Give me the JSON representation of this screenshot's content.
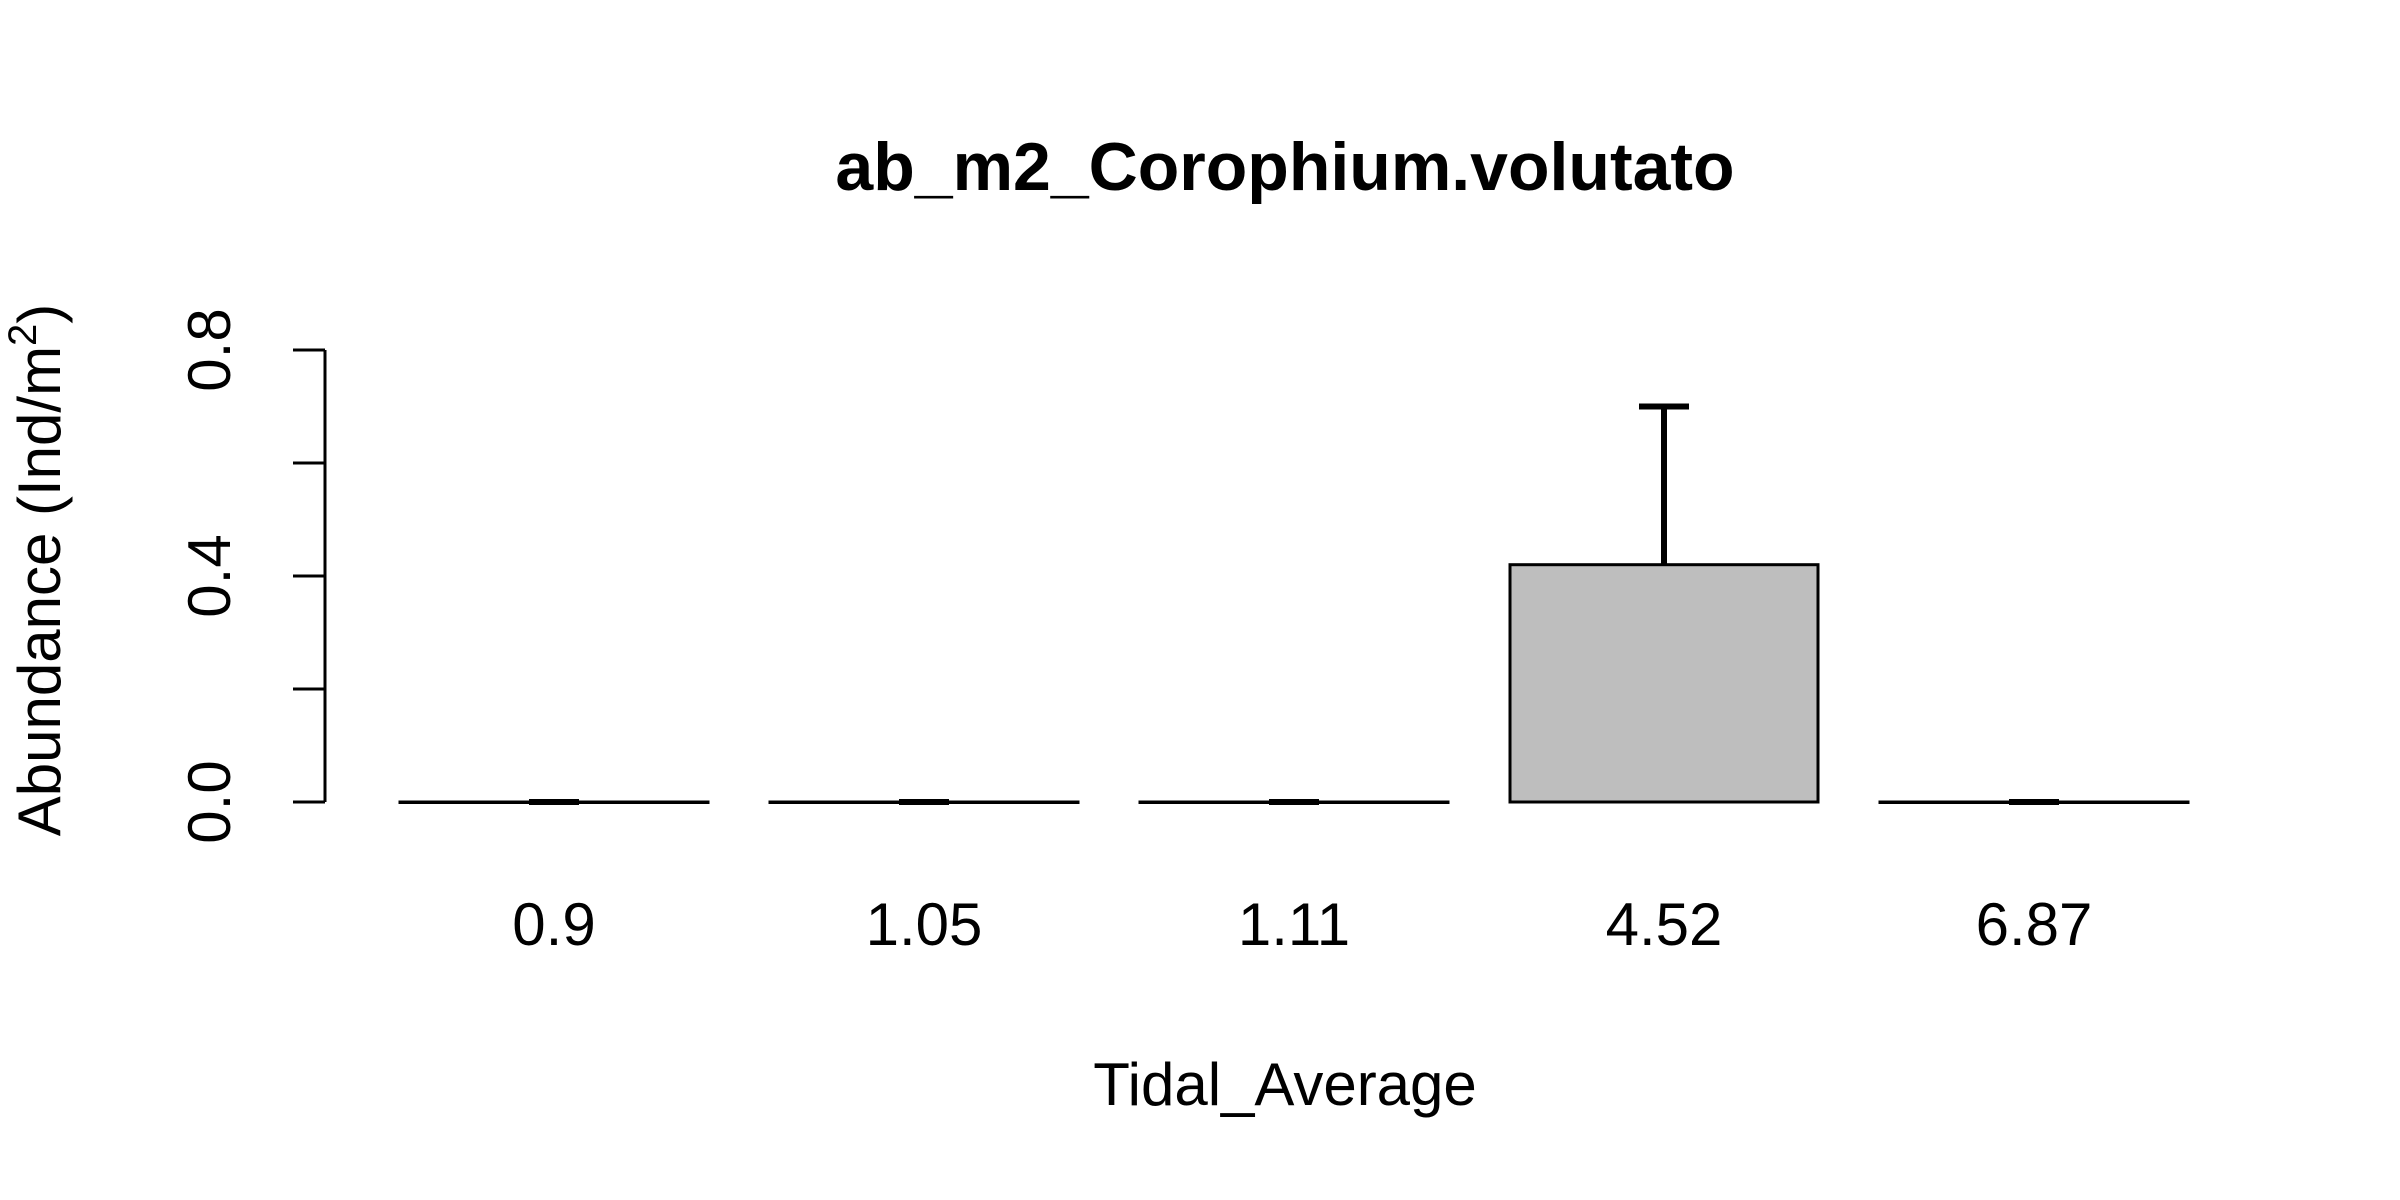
{
  "chart_data": {
    "type": "bar",
    "title": "ab_m2_Corophium.volutato",
    "xlabel": "Tidal_Average",
    "ylabel": "Abundance (Ind/m",
    "ylabel_superscript": "2",
    "ylabel_close": ")",
    "categories": [
      "0.9",
      "1.05",
      "1.11",
      "4.52",
      "6.87"
    ],
    "values": [
      0,
      0,
      0,
      0.42,
      0
    ],
    "error_upper": [
      0,
      0,
      0,
      0.7,
      0
    ],
    "ylim": [
      0,
      0.8
    ],
    "yticks": [
      0,
      0.2,
      0.4,
      0.6,
      0.8
    ],
    "ytick_labels": [
      "0.0",
      "",
      "0.4",
      "",
      "0.8"
    ],
    "bar_color": "#bebebe",
    "grid": false
  }
}
